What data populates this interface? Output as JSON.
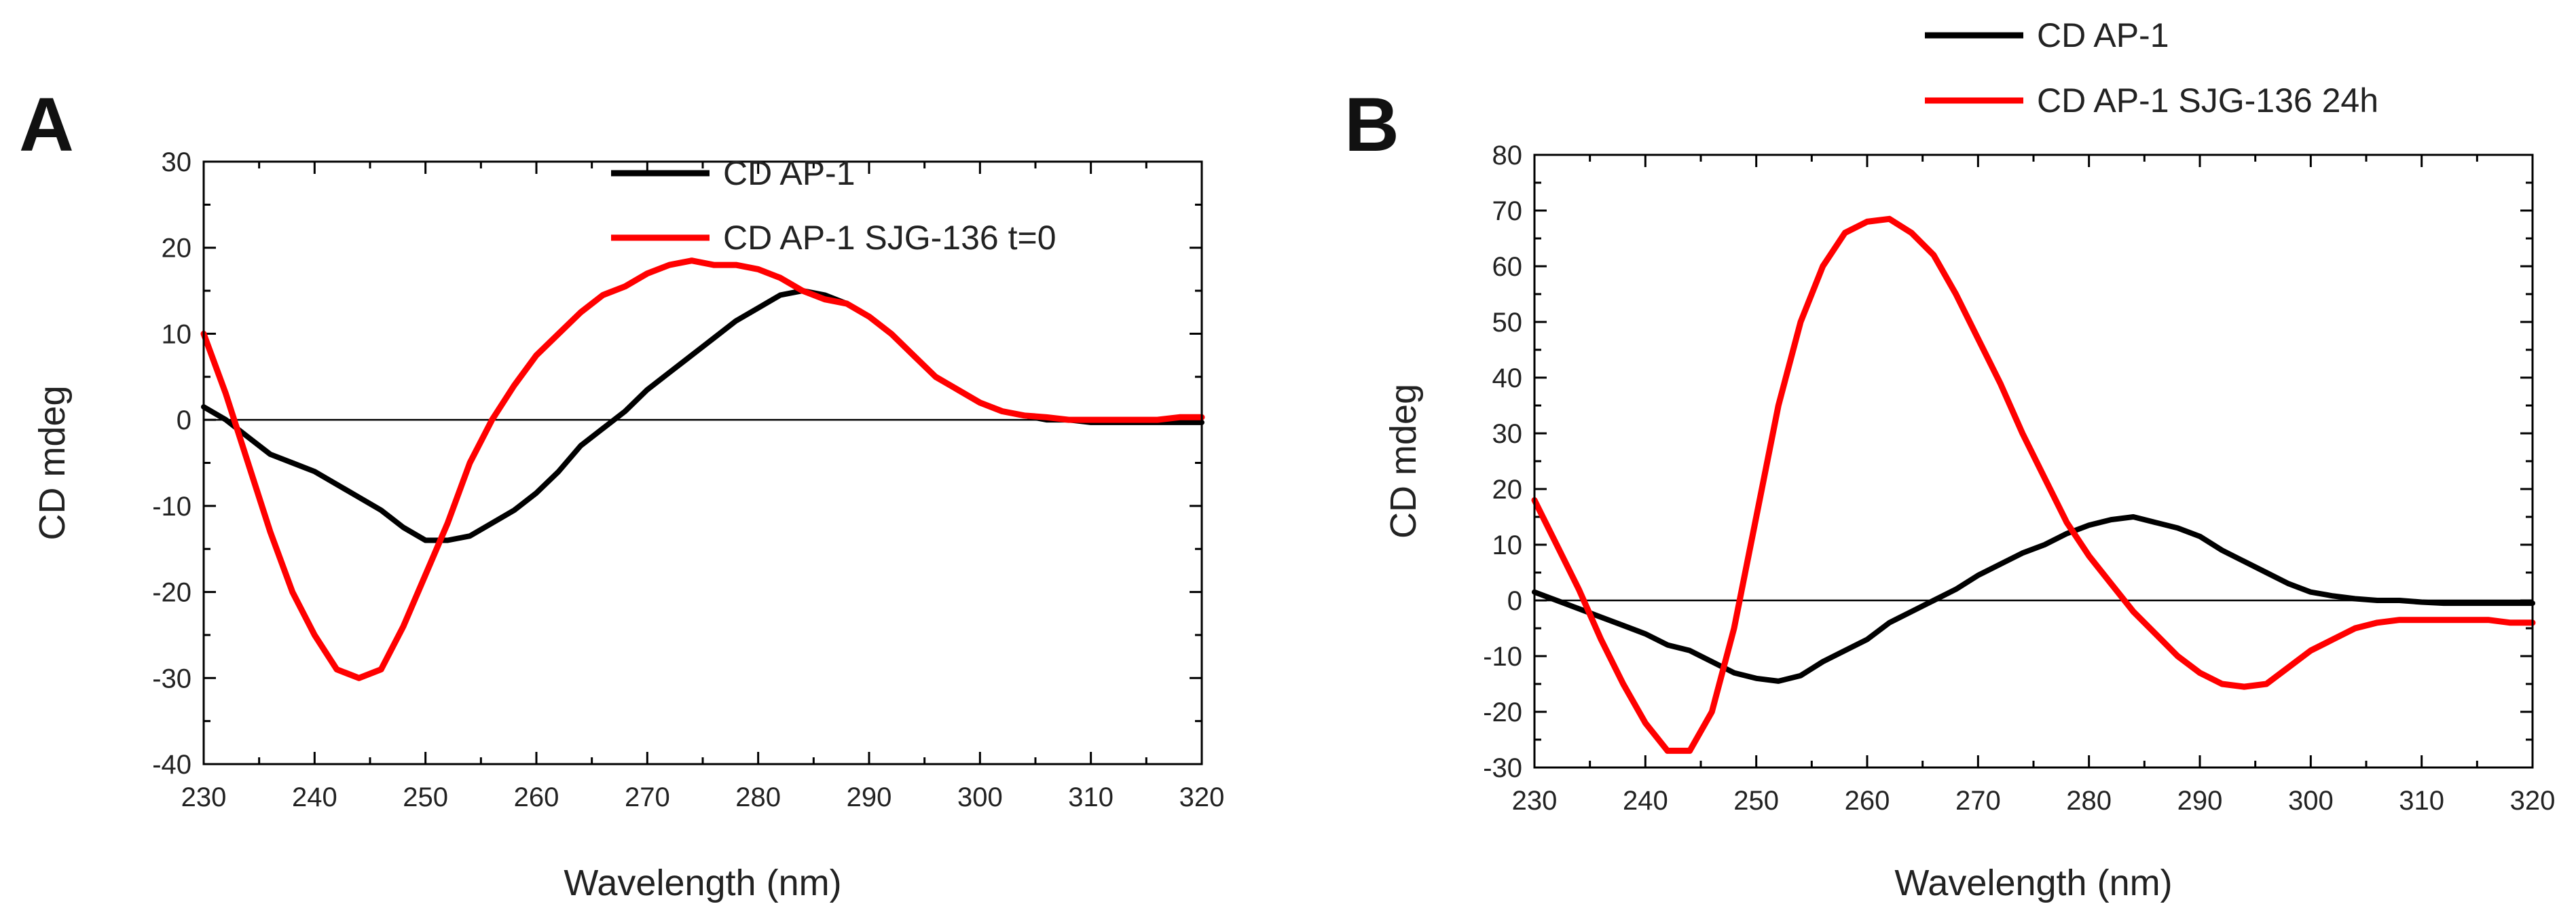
{
  "colors": {
    "ap1": "#000000",
    "sjg": "#ff0000",
    "axis": "#000000"
  },
  "chart_data": [
    {
      "type": "line",
      "panel_label": "A",
      "xlabel": "Wavelength (nm)",
      "ylabel": "CD mdeg",
      "xlim": [
        230,
        320
      ],
      "ylim": [
        -40,
        30
      ],
      "xticks": [
        230,
        240,
        250,
        260,
        270,
        280,
        290,
        300,
        310,
        320
      ],
      "yticks": [
        -40,
        -30,
        -20,
        -10,
        0,
        10,
        20,
        30
      ],
      "zero_line": true,
      "legend_position": "top-right",
      "series": [
        {
          "name": "CD AP-1",
          "color": "#000000",
          "x": [
            230,
            232,
            234,
            236,
            238,
            240,
            242,
            244,
            246,
            248,
            250,
            252,
            254,
            256,
            258,
            260,
            262,
            264,
            266,
            268,
            270,
            272,
            274,
            276,
            278,
            280,
            282,
            284,
            286,
            288,
            290,
            292,
            294,
            296,
            298,
            300,
            302,
            304,
            306,
            308,
            310,
            312,
            314,
            316,
            318,
            320
          ],
          "y": [
            1.5,
            0,
            -2,
            -4,
            -5,
            -6,
            -7.5,
            -9,
            -10.5,
            -12.5,
            -14,
            -14,
            -13.5,
            -12,
            -10.5,
            -8.5,
            -6,
            -3,
            -1,
            1,
            3.5,
            5.5,
            7.5,
            9.5,
            11.5,
            13,
            14.5,
            15,
            14.5,
            13.5,
            12,
            10,
            7.5,
            5,
            3.5,
            2,
            1,
            0.5,
            0,
            0,
            -0.3,
            -0.3,
            -0.3,
            -0.3,
            -0.3,
            -0.3
          ]
        },
        {
          "name": "CD AP-1 SJG-136 t=0",
          "color": "#ff0000",
          "x": [
            230,
            232,
            234,
            236,
            238,
            240,
            242,
            244,
            246,
            248,
            250,
            252,
            254,
            256,
            258,
            260,
            262,
            264,
            266,
            268,
            270,
            272,
            274,
            276,
            278,
            280,
            282,
            284,
            286,
            288,
            290,
            292,
            294,
            296,
            298,
            300,
            302,
            304,
            306,
            308,
            310,
            312,
            314,
            316,
            318,
            320
          ],
          "y": [
            10,
            3,
            -5,
            -13,
            -20,
            -25,
            -29,
            -30,
            -29,
            -24,
            -18,
            -12,
            -5,
            0,
            4,
            7.5,
            10,
            12.5,
            14.5,
            15.5,
            17,
            18,
            18.5,
            18,
            18,
            17.5,
            16.5,
            15,
            14,
            13.5,
            12,
            10,
            7.5,
            5,
            3.5,
            2,
            1,
            0.5,
            0.3,
            0,
            0,
            0,
            0,
            0,
            0.3,
            0.3
          ]
        }
      ]
    },
    {
      "type": "line",
      "panel_label": "B",
      "xlabel": "Wavelength (nm)",
      "ylabel": "CD mdeg",
      "xlim": [
        230,
        320
      ],
      "ylim": [
        -30,
        80
      ],
      "xticks": [
        230,
        240,
        250,
        260,
        270,
        280,
        290,
        300,
        310,
        320
      ],
      "yticks": [
        -30,
        -20,
        -10,
        0,
        10,
        20,
        30,
        40,
        50,
        60,
        70,
        80
      ],
      "zero_line": true,
      "legend_position": "top-right",
      "series": [
        {
          "name": "CD AP-1",
          "color": "#000000",
          "x": [
            230,
            232,
            234,
            236,
            238,
            240,
            242,
            244,
            246,
            248,
            250,
            252,
            254,
            256,
            258,
            260,
            262,
            264,
            266,
            268,
            270,
            272,
            274,
            276,
            278,
            280,
            282,
            284,
            286,
            288,
            290,
            292,
            294,
            296,
            298,
            300,
            302,
            304,
            306,
            308,
            310,
            312,
            314,
            316,
            318,
            320
          ],
          "y": [
            1.5,
            0,
            -1.5,
            -3,
            -4.5,
            -6,
            -8,
            -9,
            -11,
            -13,
            -14,
            -14.5,
            -13.5,
            -11,
            -9,
            -7,
            -4,
            -2,
            0,
            2,
            4.5,
            6.5,
            8.5,
            10,
            12,
            13.5,
            14.5,
            15,
            14,
            13,
            11.5,
            9,
            7,
            5,
            3,
            1.5,
            0.8,
            0.3,
            0,
            0,
            -0.3,
            -0.5,
            -0.5,
            -0.5,
            -0.5,
            -0.5
          ]
        },
        {
          "name": "CD AP-1 SJG-136 24h",
          "color": "#ff0000",
          "x": [
            230,
            232,
            234,
            236,
            238,
            240,
            242,
            244,
            246,
            248,
            250,
            252,
            254,
            256,
            258,
            260,
            262,
            264,
            266,
            268,
            270,
            272,
            274,
            276,
            278,
            280,
            282,
            284,
            286,
            288,
            290,
            292,
            294,
            296,
            298,
            300,
            302,
            304,
            306,
            308,
            310,
            312,
            314,
            316,
            318,
            320
          ],
          "y": [
            18,
            10,
            2,
            -7,
            -15,
            -22,
            -27,
            -27,
            -20,
            -5,
            15,
            35,
            50,
            60,
            66,
            68,
            68.5,
            66,
            62,
            55,
            47,
            39,
            30,
            22,
            14,
            8,
            3,
            -2,
            -6,
            -10,
            -13,
            -15,
            -15.5,
            -15,
            -12,
            -9,
            -7,
            -5,
            -4,
            -3.5,
            -3.5,
            -3.5,
            -3.5,
            -3.5,
            -4,
            -4
          ]
        }
      ]
    }
  ]
}
